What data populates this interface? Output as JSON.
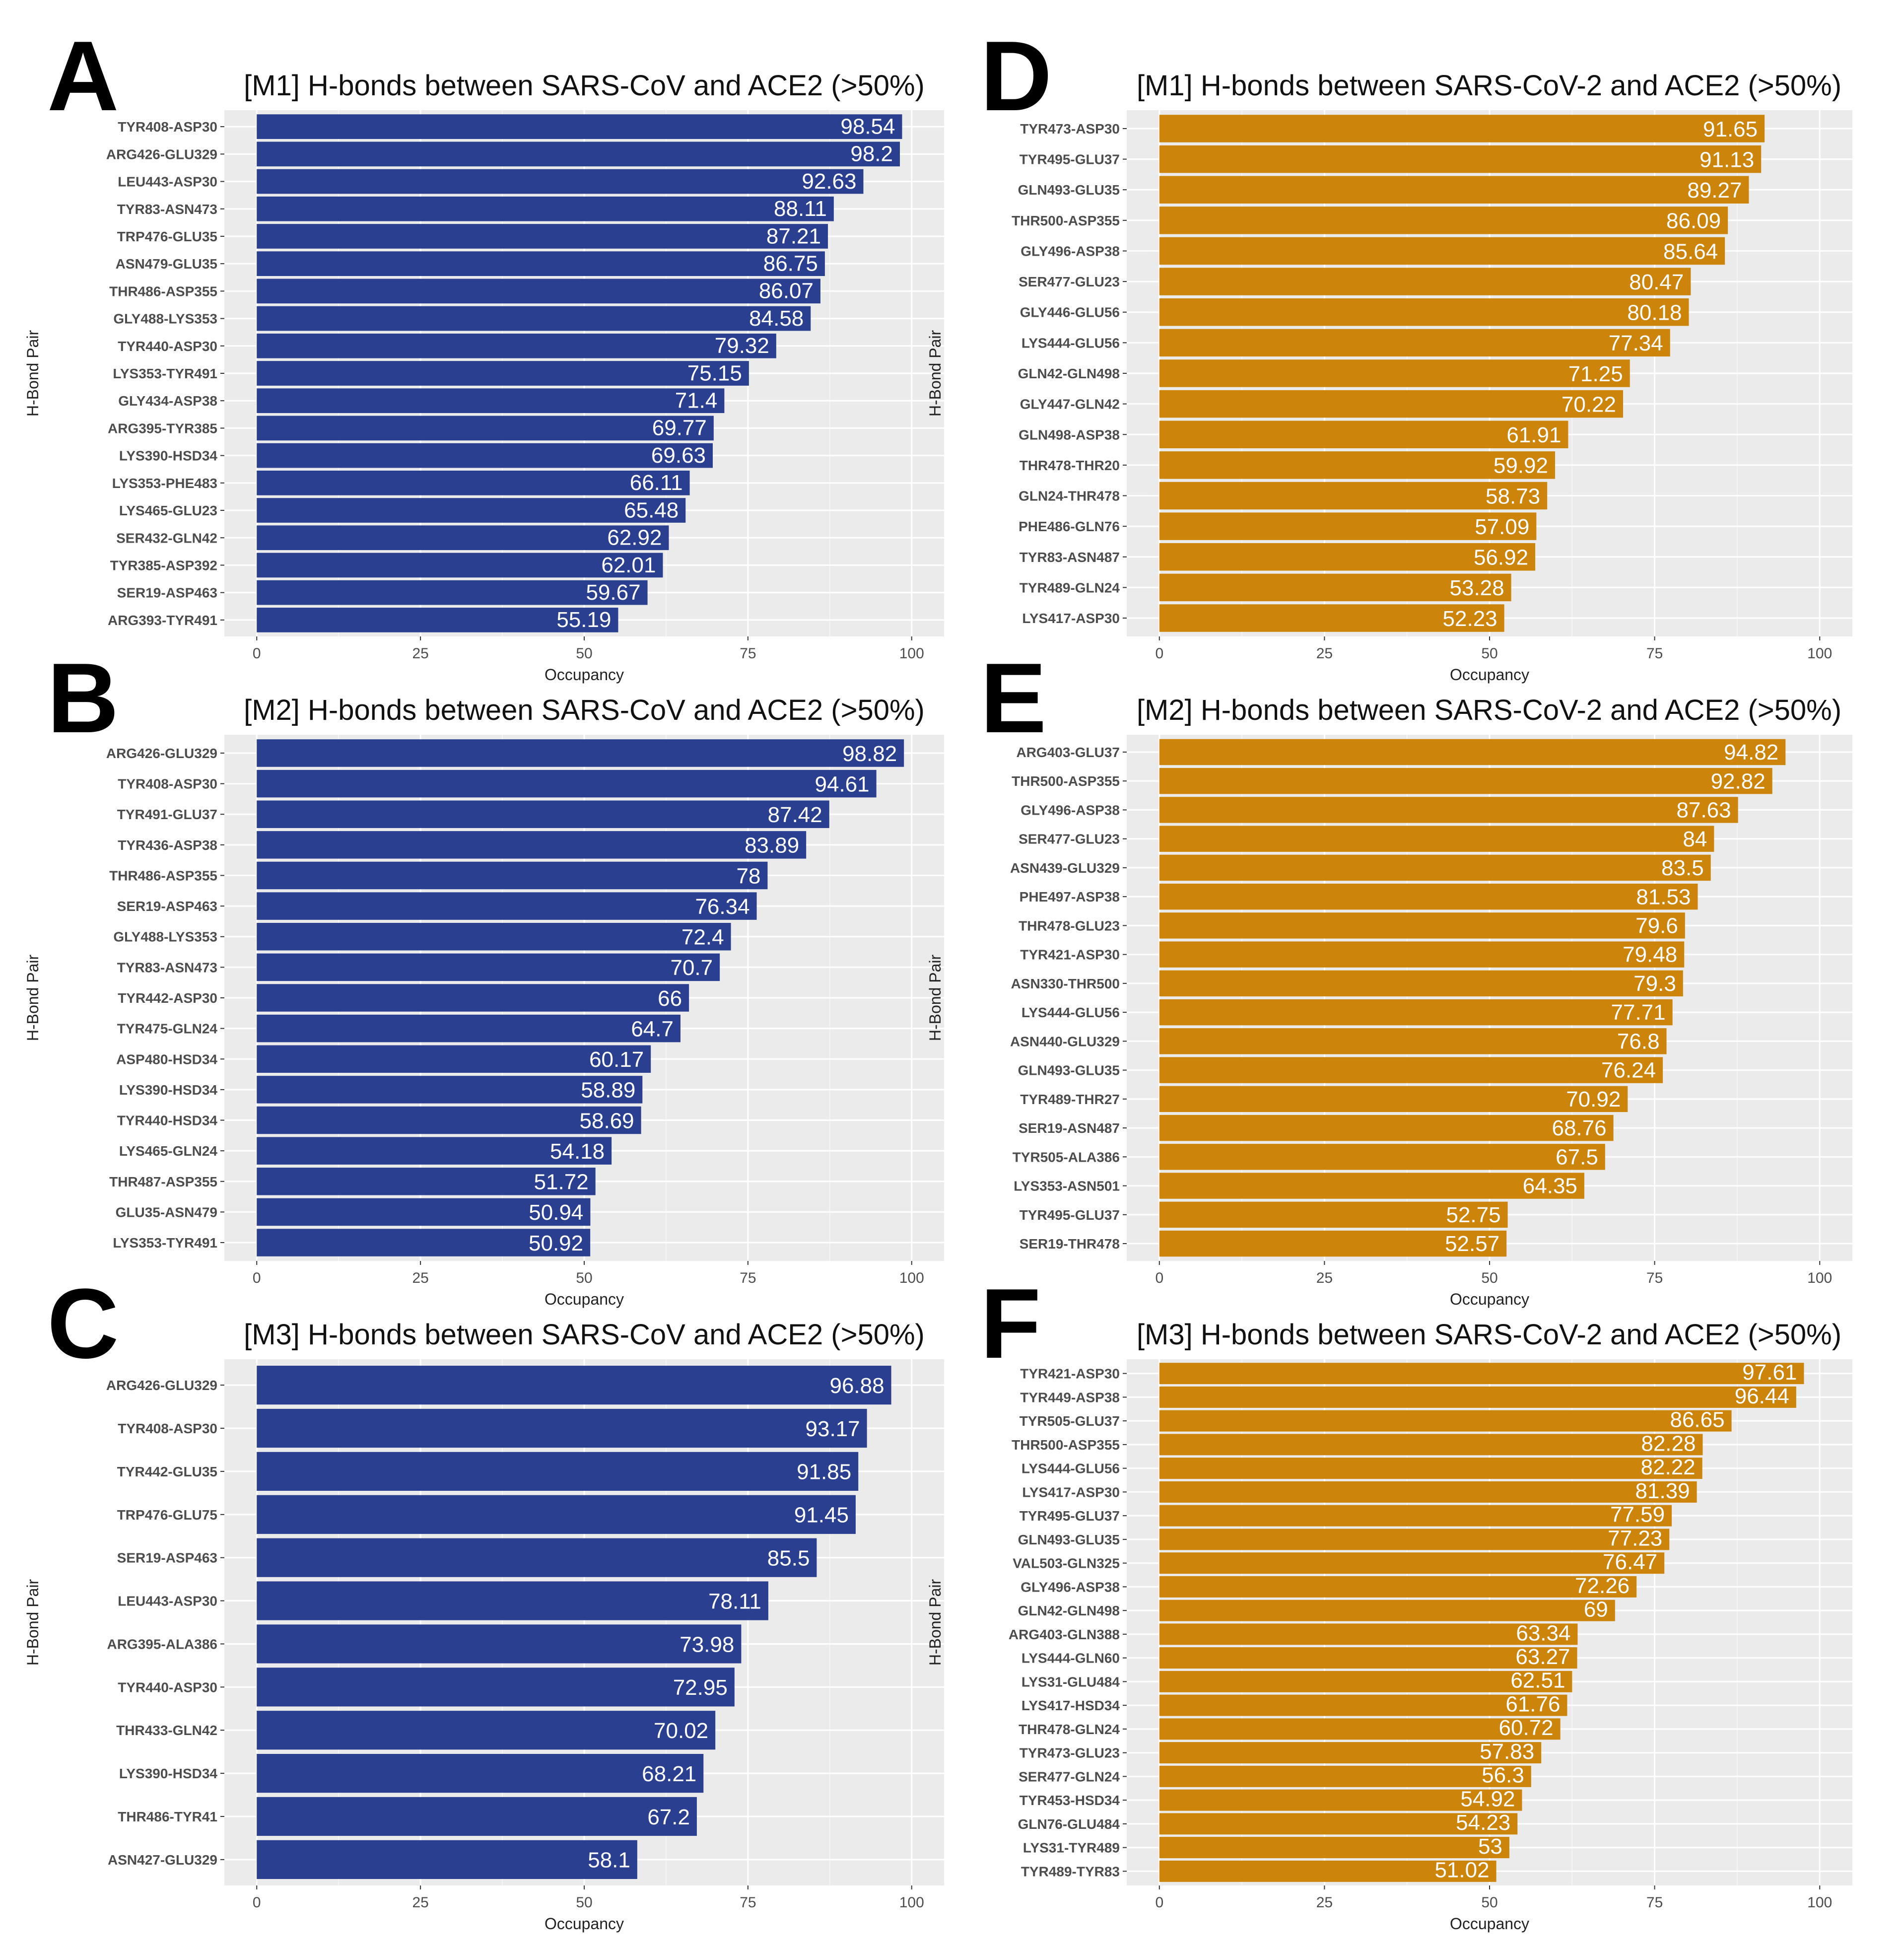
{
  "chart_data": [
    {
      "panel": "A",
      "type": "bar",
      "orientation": "horizontal",
      "title": "[M1] H-bonds between SARS-CoV and ACE2 (>50%)",
      "xlabel": "Occupancy",
      "ylabel": "H-Bond Pair",
      "xlim": [
        0,
        100
      ],
      "xticks": [
        0,
        25,
        50,
        75,
        100
      ],
      "color": "#2a3f8f",
      "categories": [
        "TYR408-ASP30",
        "ARG426-GLU329",
        "LEU443-ASP30",
        "TYR83-ASN473",
        "TRP476-GLU35",
        "ASN479-GLU35",
        "THR486-ASP355",
        "GLY488-LYS353",
        "TYR440-ASP30",
        "LYS353-TYR491",
        "GLY434-ASP38",
        "ARG395-TYR385",
        "LYS390-HSD34",
        "LYS353-PHE483",
        "LYS465-GLU23",
        "SER432-GLN42",
        "TYR385-ASP392",
        "SER19-ASP463",
        "ARG393-TYR491"
      ],
      "values": [
        98.54,
        98.2,
        92.63,
        88.11,
        87.21,
        86.75,
        86.07,
        84.58,
        79.32,
        75.15,
        71.4,
        69.77,
        69.63,
        66.11,
        65.48,
        62.92,
        62.01,
        59.67,
        55.19
      ],
      "labels": [
        "98.54",
        "98.2",
        "92.63",
        "88.11",
        "87.21",
        "86.75",
        "86.07",
        "84.58",
        "79.32",
        "75.15",
        "71.4",
        "69.77",
        "69.63",
        "66.11",
        "65.48",
        "62.92",
        "62.01",
        "59.67",
        "55.19"
      ]
    },
    {
      "panel": "B",
      "type": "bar",
      "orientation": "horizontal",
      "title": "[M2] H-bonds between SARS-CoV and ACE2 (>50%)",
      "xlabel": "Occupancy",
      "ylabel": "H-Bond Pair",
      "xlim": [
        0,
        100
      ],
      "xticks": [
        0,
        25,
        50,
        75,
        100
      ],
      "color": "#2a3f8f",
      "categories": [
        "ARG426-GLU329",
        "TYR408-ASP30",
        "TYR491-GLU37",
        "TYR436-ASP38",
        "THR486-ASP355",
        "SER19-ASP463",
        "GLY488-LYS353",
        "TYR83-ASN473",
        "TYR442-ASP30",
        "TYR475-GLN24",
        "ASP480-HSD34",
        "LYS390-HSD34",
        "TYR440-HSD34",
        "LYS465-GLN24",
        "THR487-ASP355",
        "GLU35-ASN479",
        "LYS353-TYR491"
      ],
      "values": [
        98.82,
        94.61,
        87.42,
        83.89,
        78,
        76.34,
        72.4,
        70.7,
        66,
        64.7,
        60.17,
        58.89,
        58.69,
        54.18,
        51.72,
        50.94,
        50.92
      ],
      "labels": [
        "98.82",
        "94.61",
        "87.42",
        "83.89",
        "78",
        "76.34",
        "72.4",
        "70.7",
        "66",
        "64.7",
        "60.17",
        "58.89",
        "58.69",
        "54.18",
        "51.72",
        "50.94",
        "50.92"
      ]
    },
    {
      "panel": "C",
      "type": "bar",
      "orientation": "horizontal",
      "title": "[M3] H-bonds between SARS-CoV and ACE2 (>50%)",
      "xlabel": "Occupancy",
      "ylabel": "H-Bond Pair",
      "xlim": [
        0,
        100
      ],
      "xticks": [
        0,
        25,
        50,
        75,
        100
      ],
      "color": "#2a3f8f",
      "categories": [
        "ARG426-GLU329",
        "TYR408-ASP30",
        "TYR442-GLU35",
        "TRP476-GLU75",
        "SER19-ASP463",
        "LEU443-ASP30",
        "ARG395-ALA386",
        "TYR440-ASP30",
        "THR433-GLN42",
        "LYS390-HSD34",
        "THR486-TYR41",
        "ASN427-GLU329"
      ],
      "values": [
        96.88,
        93.17,
        91.85,
        91.45,
        85.5,
        78.11,
        73.98,
        72.95,
        70.02,
        68.21,
        67.2,
        58.1
      ],
      "labels": [
        "96.88",
        "93.17",
        "91.85",
        "91.45",
        "85.5",
        "78.11",
        "73.98",
        "72.95",
        "70.02",
        "68.21",
        "67.2",
        "58.1"
      ]
    },
    {
      "panel": "D",
      "type": "bar",
      "orientation": "horizontal",
      "title": "[M1] H-bonds between SARS-CoV-2 and ACE2 (>50%)",
      "xlabel": "Occupancy",
      "ylabel": "H-Bond Pair",
      "xlim": [
        0,
        100
      ],
      "xticks": [
        0,
        25,
        50,
        75,
        100
      ],
      "color": "#cc850a",
      "categories": [
        "TYR473-ASP30",
        "TYR495-GLU37",
        "GLN493-GLU35",
        "THR500-ASP355",
        "GLY496-ASP38",
        "SER477-GLU23",
        "GLY446-GLU56",
        "LYS444-GLU56",
        "GLN42-GLN498",
        "GLY447-GLN42",
        "GLN498-ASP38",
        "THR478-THR20",
        "GLN24-THR478",
        "PHE486-GLN76",
        "TYR83-ASN487",
        "TYR489-GLN24",
        "LYS417-ASP30"
      ],
      "values": [
        91.65,
        91.13,
        89.27,
        86.09,
        85.64,
        80.47,
        80.18,
        77.34,
        71.25,
        70.22,
        61.91,
        59.92,
        58.73,
        57.09,
        56.92,
        53.28,
        52.23
      ],
      "labels": [
        "91.65",
        "91.13",
        "89.27",
        "86.09",
        "85.64",
        "80.47",
        "80.18",
        "77.34",
        "71.25",
        "70.22",
        "61.91",
        "59.92",
        "58.73",
        "57.09",
        "56.92",
        "53.28",
        "52.23"
      ]
    },
    {
      "panel": "E",
      "type": "bar",
      "orientation": "horizontal",
      "title": "[M2] H-bonds between SARS-CoV-2 and ACE2 (>50%)",
      "xlabel": "Occupancy",
      "ylabel": "H-Bond Pair",
      "xlim": [
        0,
        100
      ],
      "xticks": [
        0,
        25,
        50,
        75,
        100
      ],
      "color": "#cc850a",
      "categories": [
        "ARG403-GLU37",
        "THR500-ASP355",
        "GLY496-ASP38",
        "SER477-GLU23",
        "ASN439-GLU329",
        "PHE497-ASP38",
        "THR478-GLU23",
        "TYR421-ASP30",
        "ASN330-THR500",
        "LYS444-GLU56",
        "ASN440-GLU329",
        "GLN493-GLU35",
        "TYR489-THR27",
        "SER19-ASN487",
        "TYR505-ALA386",
        "LYS353-ASN501",
        "TYR495-GLU37",
        "SER19-THR478"
      ],
      "values": [
        94.82,
        92.82,
        87.63,
        84,
        83.5,
        81.53,
        79.6,
        79.48,
        79.3,
        77.71,
        76.8,
        76.24,
        70.92,
        68.76,
        67.5,
        64.35,
        52.75,
        52.57
      ],
      "labels": [
        "94.82",
        "92.82",
        "87.63",
        "84",
        "83.5",
        "81.53",
        "79.6",
        "79.48",
        "79.3",
        "77.71",
        "76.8",
        "76.24",
        "70.92",
        "68.76",
        "67.5",
        "64.35",
        "52.75",
        "52.57"
      ]
    },
    {
      "panel": "F",
      "type": "bar",
      "orientation": "horizontal",
      "title": "[M3] H-bonds between SARS-CoV-2 and ACE2 (>50%)",
      "xlabel": "Occupancy",
      "ylabel": "H-Bond Pair",
      "xlim": [
        0,
        100
      ],
      "xticks": [
        0,
        25,
        50,
        75,
        100
      ],
      "color": "#cc850a",
      "categories": [
        "TYR421-ASP30",
        "TYR449-ASP38",
        "TYR505-GLU37",
        "THR500-ASP355",
        "LYS444-GLU56",
        "LYS417-ASP30",
        "TYR495-GLU37",
        "GLN493-GLU35",
        "VAL503-GLN325",
        "GLY496-ASP38",
        "GLN42-GLN498",
        "ARG403-GLN388",
        "LYS444-GLN60",
        "LYS31-GLU484",
        "LYS417-HSD34",
        "THR478-GLN24",
        "TYR473-GLU23",
        "SER477-GLN24",
        "TYR453-HSD34",
        "GLN76-GLU484",
        "LYS31-TYR489",
        "TYR489-TYR83"
      ],
      "values": [
        97.61,
        96.44,
        86.65,
        82.28,
        82.22,
        81.39,
        77.59,
        77.23,
        76.47,
        72.26,
        69,
        63.34,
        63.27,
        62.51,
        61.76,
        60.72,
        57.83,
        56.3,
        54.92,
        54.23,
        53,
        51.02
      ],
      "labels": [
        "97.61",
        "96.44",
        "86.65",
        "82.28",
        "82.22",
        "81.39",
        "77.59",
        "77.23",
        "76.47",
        "72.26",
        "69",
        "63.34",
        "63.27",
        "62.51",
        "61.76",
        "60.72",
        "57.83",
        "56.3",
        "54.92",
        "54.23",
        "53",
        "51.02"
      ]
    }
  ]
}
